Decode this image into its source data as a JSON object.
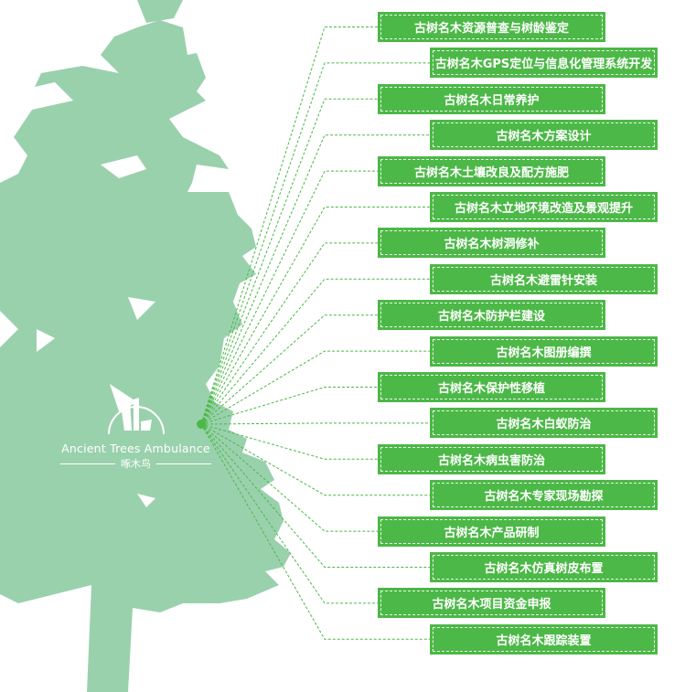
{
  "colors": {
    "tree": "#9ad1ad",
    "accent": "#4cb847",
    "line": "#4cb847"
  },
  "logo": {
    "en": "Ancient Trees Ambulance",
    "cn": "啄木鸟",
    "icon": "woodpecker-logo-icon"
  },
  "services": [
    "古树名木资源普查与树龄鉴定",
    "古树名木GPS定位与信息化管理系统开发",
    "古树名木日常养护",
    "古树名木方案设计",
    "古树名木土壤改良及配方施肥",
    "古树名木立地环境改造及景观提升",
    "古树名木树洞修补",
    "古树名木避雷针安装",
    "古树名木防护栏建设",
    "古树名木图册编撰",
    "古树名木保护性移植",
    "古树名木白蚁防治",
    "古树名木病虫害防治",
    "古树名木专家现场勘探",
    "古树名木产品研制",
    "古树名木仿真树皮布置",
    "古树名木项目资金申报",
    "古树名木跟踪装置"
  ]
}
